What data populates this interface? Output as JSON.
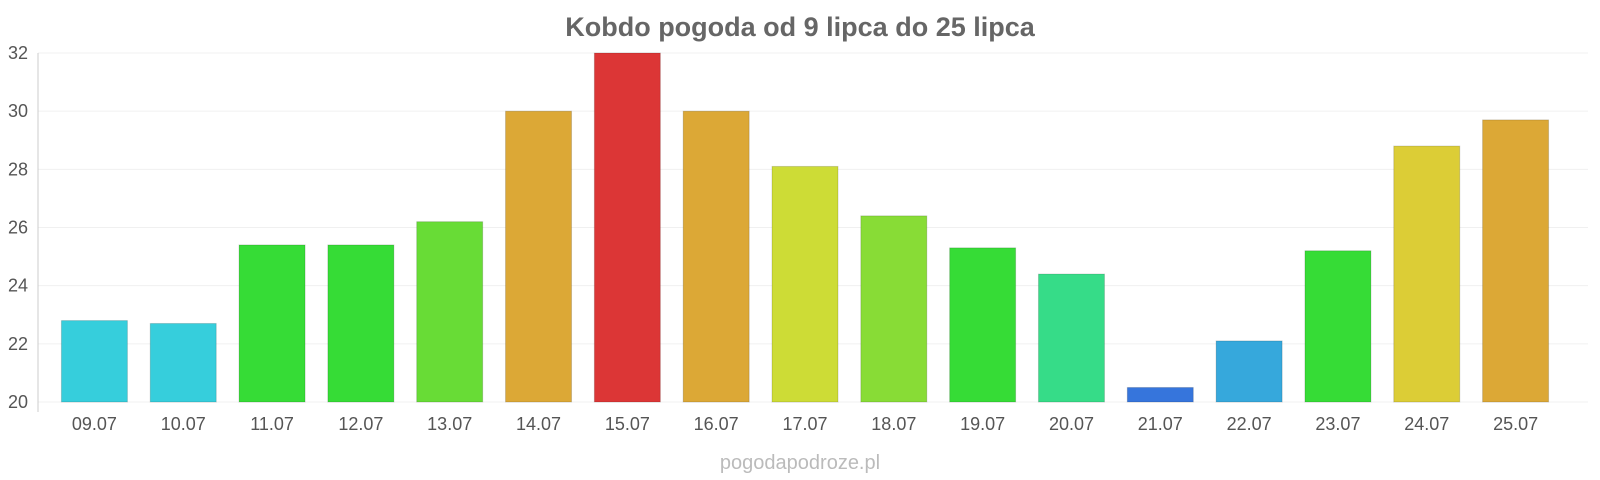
{
  "chart_data": {
    "type": "bar",
    "title": "Kobdo pogoda od 9 lipca do 25 lipca",
    "categories": [
      "09.07",
      "10.07",
      "11.07",
      "12.07",
      "13.07",
      "14.07",
      "15.07",
      "16.07",
      "17.07",
      "18.07",
      "19.07",
      "20.07",
      "21.07",
      "22.07",
      "23.07",
      "24.07",
      "25.07"
    ],
    "values": [
      22.8,
      22.7,
      25.4,
      25.4,
      26.2,
      30.0,
      32.0,
      30.0,
      28.1,
      26.4,
      25.3,
      24.4,
      20.5,
      22.1,
      25.2,
      28.8,
      29.7
    ],
    "bar_colors": [
      "#36cedc",
      "#36cedc",
      "#36dc36",
      "#36dc36",
      "#68dc36",
      "#dca836",
      "#dc3636",
      "#dca836",
      "#cddc36",
      "#88dc36",
      "#36dc36",
      "#36dc88",
      "#3675dc",
      "#36a8dc",
      "#36dc36",
      "#dccd36",
      "#dca836"
    ],
    "yticks": [
      "20",
      "22",
      "24",
      "26",
      "28",
      "30",
      "32"
    ],
    "ylim": [
      20,
      32
    ],
    "grid": true,
    "xlabel": "",
    "ylabel": ""
  },
  "footer": "pogodapodroze.pl"
}
